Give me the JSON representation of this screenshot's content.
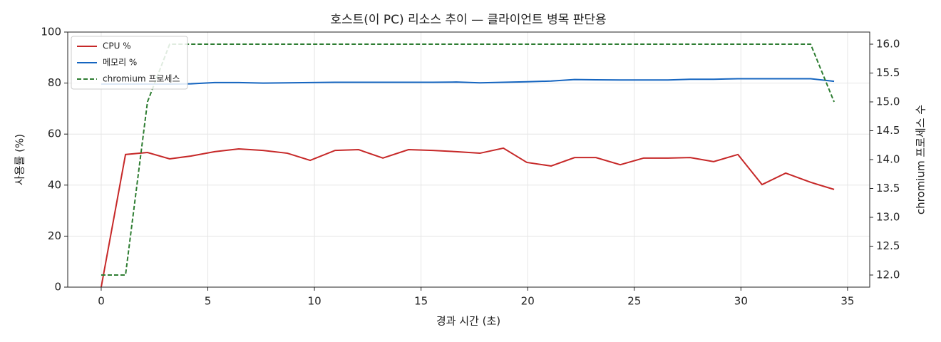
{
  "chart_data": {
    "type": "line",
    "title": "호스트(이 PC) 리소스 추이 — 클라이언트 병목 판단용",
    "x_label": "경과 시간 (초)",
    "y_label": "사용률 (%)",
    "y2_label": "chromium 프로세스 수",
    "x": [
      0,
      1.14,
      2.17,
      3.21,
      4.21,
      5.32,
      6.45,
      7.59,
      8.73,
      9.8,
      10.97,
      12.07,
      13.21,
      14.41,
      15.55,
      16.65,
      17.76,
      18.86,
      19.96,
      21.1,
      22.2,
      23.2,
      24.34,
      25.44,
      26.58,
      27.62,
      28.72,
      29.86,
      30.99,
      32.1,
      33.27,
      34.37
    ],
    "series": [
      {
        "name": "CPU %",
        "color": "#c62828",
        "dash": false,
        "axis": "y",
        "values": [
          0,
          52.0,
          52.8,
          50.3,
          51.4,
          53.1,
          54.2,
          53.6,
          52.5,
          49.7,
          53.6,
          53.9,
          50.6,
          53.9,
          53.6,
          53.1,
          52.5,
          54.5,
          48.9,
          47.5,
          50.8,
          50.8,
          48.0,
          50.6,
          50.6,
          50.8,
          49.2,
          52.0,
          40.2,
          44.7,
          41.1,
          38.3
        ]
      },
      {
        "name": "메모리 %",
        "color": "#1565c0",
        "dash": false,
        "axis": "y",
        "values": [
          79.6,
          79.6,
          79.6,
          79.6,
          79.7,
          80.2,
          80.2,
          80.0,
          80.1,
          80.2,
          80.3,
          80.3,
          80.3,
          80.3,
          80.3,
          80.4,
          80.1,
          80.3,
          80.5,
          80.8,
          81.4,
          81.3,
          81.2,
          81.2,
          81.2,
          81.5,
          81.5,
          81.7,
          81.7,
          81.7,
          81.7,
          80.7
        ]
      },
      {
        "name": "chromium 프로세스",
        "color": "#2e7d32",
        "dash": true,
        "axis": "y2",
        "values": [
          12,
          12,
          15,
          16,
          16,
          16,
          16,
          16,
          16,
          16,
          16,
          16,
          16,
          16,
          16,
          16,
          16,
          16,
          16,
          16,
          16,
          16,
          16,
          16,
          16,
          16,
          16,
          16,
          16,
          16,
          16,
          15
        ]
      }
    ],
    "xlim": [
      -1.57,
      36.04
    ],
    "xticks": [
      0,
      5,
      10,
      15,
      20,
      25,
      30,
      35
    ],
    "ylim": [
      0,
      100
    ],
    "yticks": [
      0,
      20,
      40,
      60,
      80,
      100
    ],
    "y2lim": [
      11.79,
      16.21
    ],
    "y2ticks": [
      {
        "value": 12,
        "label": "12.0"
      },
      12.5,
      {
        "value": 13,
        "label": "13.0"
      },
      13.5,
      {
        "value": 14,
        "label": "14.0"
      },
      14.5,
      {
        "value": 15,
        "label": "15.0"
      },
      15.5,
      {
        "value": 16,
        "label": "16.0"
      }
    ],
    "grid": true,
    "legend": "upper-left"
  }
}
